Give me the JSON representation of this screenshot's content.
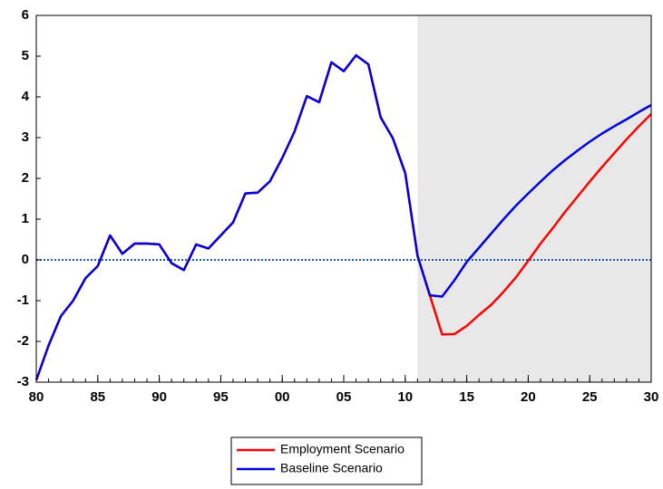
{
  "chart_data": {
    "type": "line",
    "x": [
      1980,
      1981,
      1982,
      1983,
      1984,
      1985,
      1986,
      1987,
      1988,
      1989,
      1990,
      1991,
      1992,
      1993,
      1994,
      1995,
      1996,
      1997,
      1998,
      1999,
      2000,
      2001,
      2002,
      2003,
      2004,
      2005,
      2006,
      2007,
      2008,
      2009,
      2010,
      2011,
      2012,
      2013,
      2014,
      2015,
      2016,
      2017,
      2018,
      2019,
      2020,
      2021,
      2022,
      2023,
      2024,
      2025,
      2026,
      2027,
      2028,
      2029,
      2030
    ],
    "series": [
      {
        "name": "Employment Scenario",
        "color": "#ff0000",
        "values": [
          -2.95,
          -2.1,
          -1.38,
          -1.0,
          -0.45,
          -0.15,
          0.6,
          0.15,
          0.4,
          0.4,
          0.38,
          -0.08,
          -0.25,
          0.38,
          0.28,
          0.6,
          0.92,
          1.63,
          1.65,
          1.93,
          2.5,
          3.15,
          4.02,
          3.87,
          4.85,
          4.63,
          5.02,
          4.8,
          3.5,
          2.98,
          2.13,
          0.1,
          -0.87,
          -1.83,
          -1.82,
          -1.62,
          -1.35,
          -1.1,
          -0.78,
          -0.43,
          -0.02,
          0.4,
          0.78,
          1.18,
          1.55,
          1.92,
          2.28,
          2.62,
          2.96,
          3.28,
          3.58
        ]
      },
      {
        "name": "Baseline Scenario",
        "color": "#0000dd",
        "values": [
          -2.95,
          -2.1,
          -1.38,
          -1.0,
          -0.45,
          -0.15,
          0.6,
          0.15,
          0.4,
          0.4,
          0.38,
          -0.08,
          -0.25,
          0.38,
          0.28,
          0.6,
          0.92,
          1.63,
          1.65,
          1.93,
          2.5,
          3.15,
          4.02,
          3.87,
          4.85,
          4.63,
          5.02,
          4.8,
          3.5,
          2.98,
          2.13,
          0.1,
          -0.87,
          -0.9,
          -0.5,
          -0.05,
          0.3,
          0.65,
          1.0,
          1.33,
          1.63,
          1.92,
          2.2,
          2.45,
          2.68,
          2.9,
          3.1,
          3.28,
          3.45,
          3.63,
          3.8
        ]
      }
    ],
    "xlim": [
      1980,
      2030
    ],
    "xticks": [
      {
        "value": 1980,
        "label": "80"
      },
      {
        "value": 1985,
        "label": "85"
      },
      {
        "value": 1990,
        "label": "90"
      },
      {
        "value": 1995,
        "label": "95"
      },
      {
        "value": 2000,
        "label": "00"
      },
      {
        "value": 2005,
        "label": "05"
      },
      {
        "value": 2010,
        "label": "10"
      },
      {
        "value": 2015,
        "label": "15"
      },
      {
        "value": 2020,
        "label": "20"
      },
      {
        "value": 2025,
        "label": "25"
      },
      {
        "value": 2030,
        "label": "30"
      }
    ],
    "ylim": [
      -3,
      6
    ],
    "yticks": [
      -3,
      -2,
      -1,
      0,
      1,
      2,
      3,
      4,
      5,
      6
    ],
    "shaded_region": [
      2011,
      2030
    ],
    "shade_color": "#e8e8e8",
    "reference_line": {
      "value": 0,
      "color": "#1a5c9c"
    },
    "legend": "bottom"
  }
}
